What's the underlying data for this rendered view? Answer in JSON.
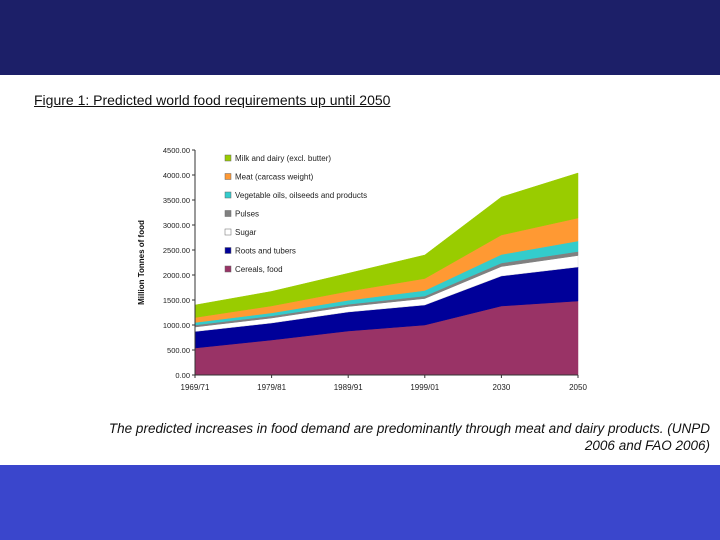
{
  "figure_title": "Figure 1: Predicted world food requirements up until 2050",
  "caption": {
    "line1": "The predicted increases in food demand are predominantly through meat and dairy products. (UNPD",
    "line2": "2006 and FAO 2006)"
  },
  "colors": {
    "top_band": "#1c1f68",
    "bottom_band": "#3a46cc"
  },
  "chart_data": {
    "type": "area",
    "stacked": true,
    "ylabel": "Million Tonnes of food",
    "xlabel": "",
    "ylim": [
      0,
      4500
    ],
    "y_ticks": [
      "0.00",
      "500.00",
      "1000.00",
      "1500.00",
      "2000.00",
      "2500.00",
      "3000.00",
      "3500.00",
      "4000.00",
      "4500.00"
    ],
    "categories": [
      "1969/71",
      "1979/81",
      "1989/91",
      "1999/01",
      "2030",
      "2050"
    ],
    "legend_position": "top-left",
    "series": [
      {
        "name": "Cereals, food",
        "color": "#993366",
        "values": [
          540,
          700,
          880,
          1000,
          1380,
          1480
        ]
      },
      {
        "name": "Roots and tubers",
        "color": "#000099",
        "values": [
          330,
          340,
          380,
          400,
          600,
          680
        ]
      },
      {
        "name": "Sugar",
        "color": "#ffffff",
        "values": [
          90,
          100,
          110,
          130,
          190,
          230
        ]
      },
      {
        "name": "Pulses",
        "color": "#808080",
        "values": [
          40,
          42,
          45,
          50,
          70,
          80
        ]
      },
      {
        "name": "Vegetable oils, oilseeds and products",
        "color": "#33cccc",
        "values": [
          50,
          60,
          80,
          110,
          170,
          210
        ]
      },
      {
        "name": "Meat (carcass weight)",
        "color": "#ff9933",
        "values": [
          100,
          140,
          180,
          240,
          390,
          460
        ]
      },
      {
        "name": "Milk and dairy (excl. butter)",
        "color": "#99cc00",
        "values": [
          250,
          290,
          360,
          470,
          760,
          900
        ]
      }
    ]
  }
}
